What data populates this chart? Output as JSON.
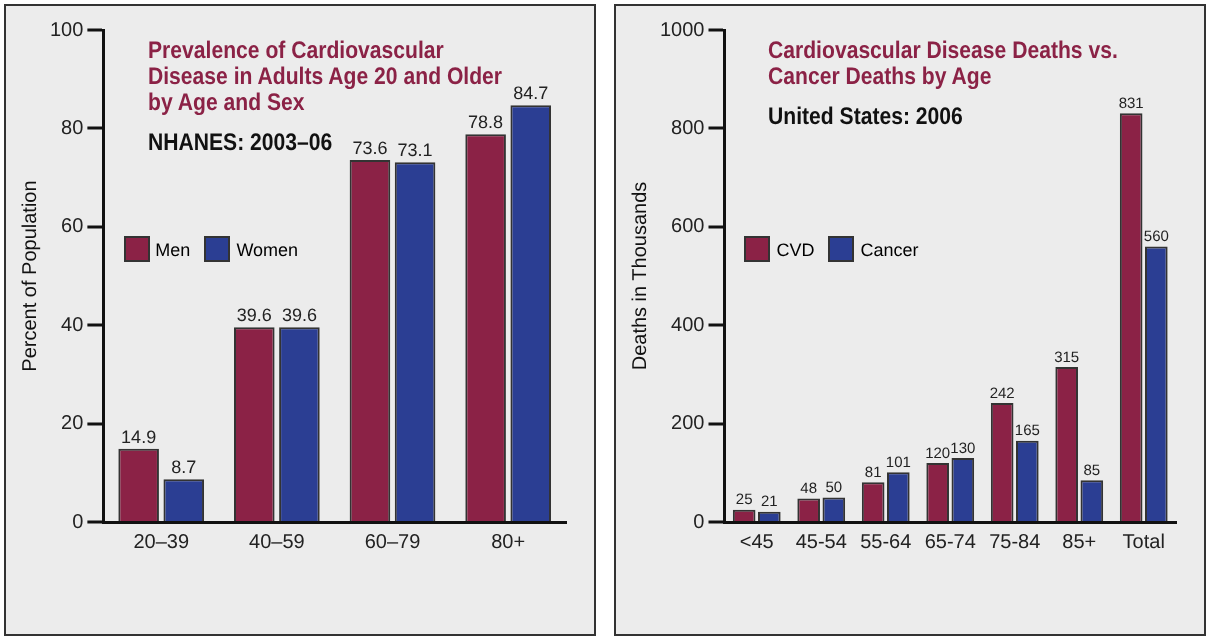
{
  "chart_data": [
    {
      "type": "bar",
      "title": "Prevalence of Cardiovascular Disease in Adults Age 20 and Older by Age and Sex",
      "subtitle": "NHANES: 2003–06",
      "ylabel": "Percent of Population",
      "categories": [
        "20–39",
        "40–59",
        "60–79",
        "80+"
      ],
      "series": [
        {
          "name": "Men",
          "color": "#8b2246",
          "values": [
            14.9,
            39.6,
            73.6,
            78.8
          ]
        },
        {
          "name": "Women",
          "color": "#2b3e93",
          "values": [
            8.7,
            39.6,
            73.1,
            84.7
          ]
        }
      ],
      "ylim": [
        0,
        100
      ],
      "yticks": [
        0,
        20,
        40,
        60,
        80,
        100
      ],
      "grid": false,
      "legend": "left",
      "data_labels": true
    },
    {
      "type": "bar",
      "title": "Cardiovascular Disease Deaths vs. Cancer Deaths by Age",
      "subtitle": "United States: 2006",
      "ylabel": "Deaths in Thousands",
      "categories": [
        "<45",
        "45-54",
        "55-64",
        "65-74",
        "75-84",
        "85+",
        "Total"
      ],
      "series": [
        {
          "name": "CVD",
          "color": "#8b2246",
          "values": [
            25,
            48,
            81,
            120,
            242,
            315,
            831
          ]
        },
        {
          "name": "Cancer",
          "color": "#2b3e93",
          "values": [
            21,
            50,
            101,
            130,
            165,
            85,
            560
          ]
        }
      ],
      "ylim": [
        0,
        1000
      ],
      "yticks": [
        0,
        200,
        400,
        600,
        800,
        1000
      ],
      "grid": false,
      "legend": "left",
      "data_labels": true
    }
  ]
}
